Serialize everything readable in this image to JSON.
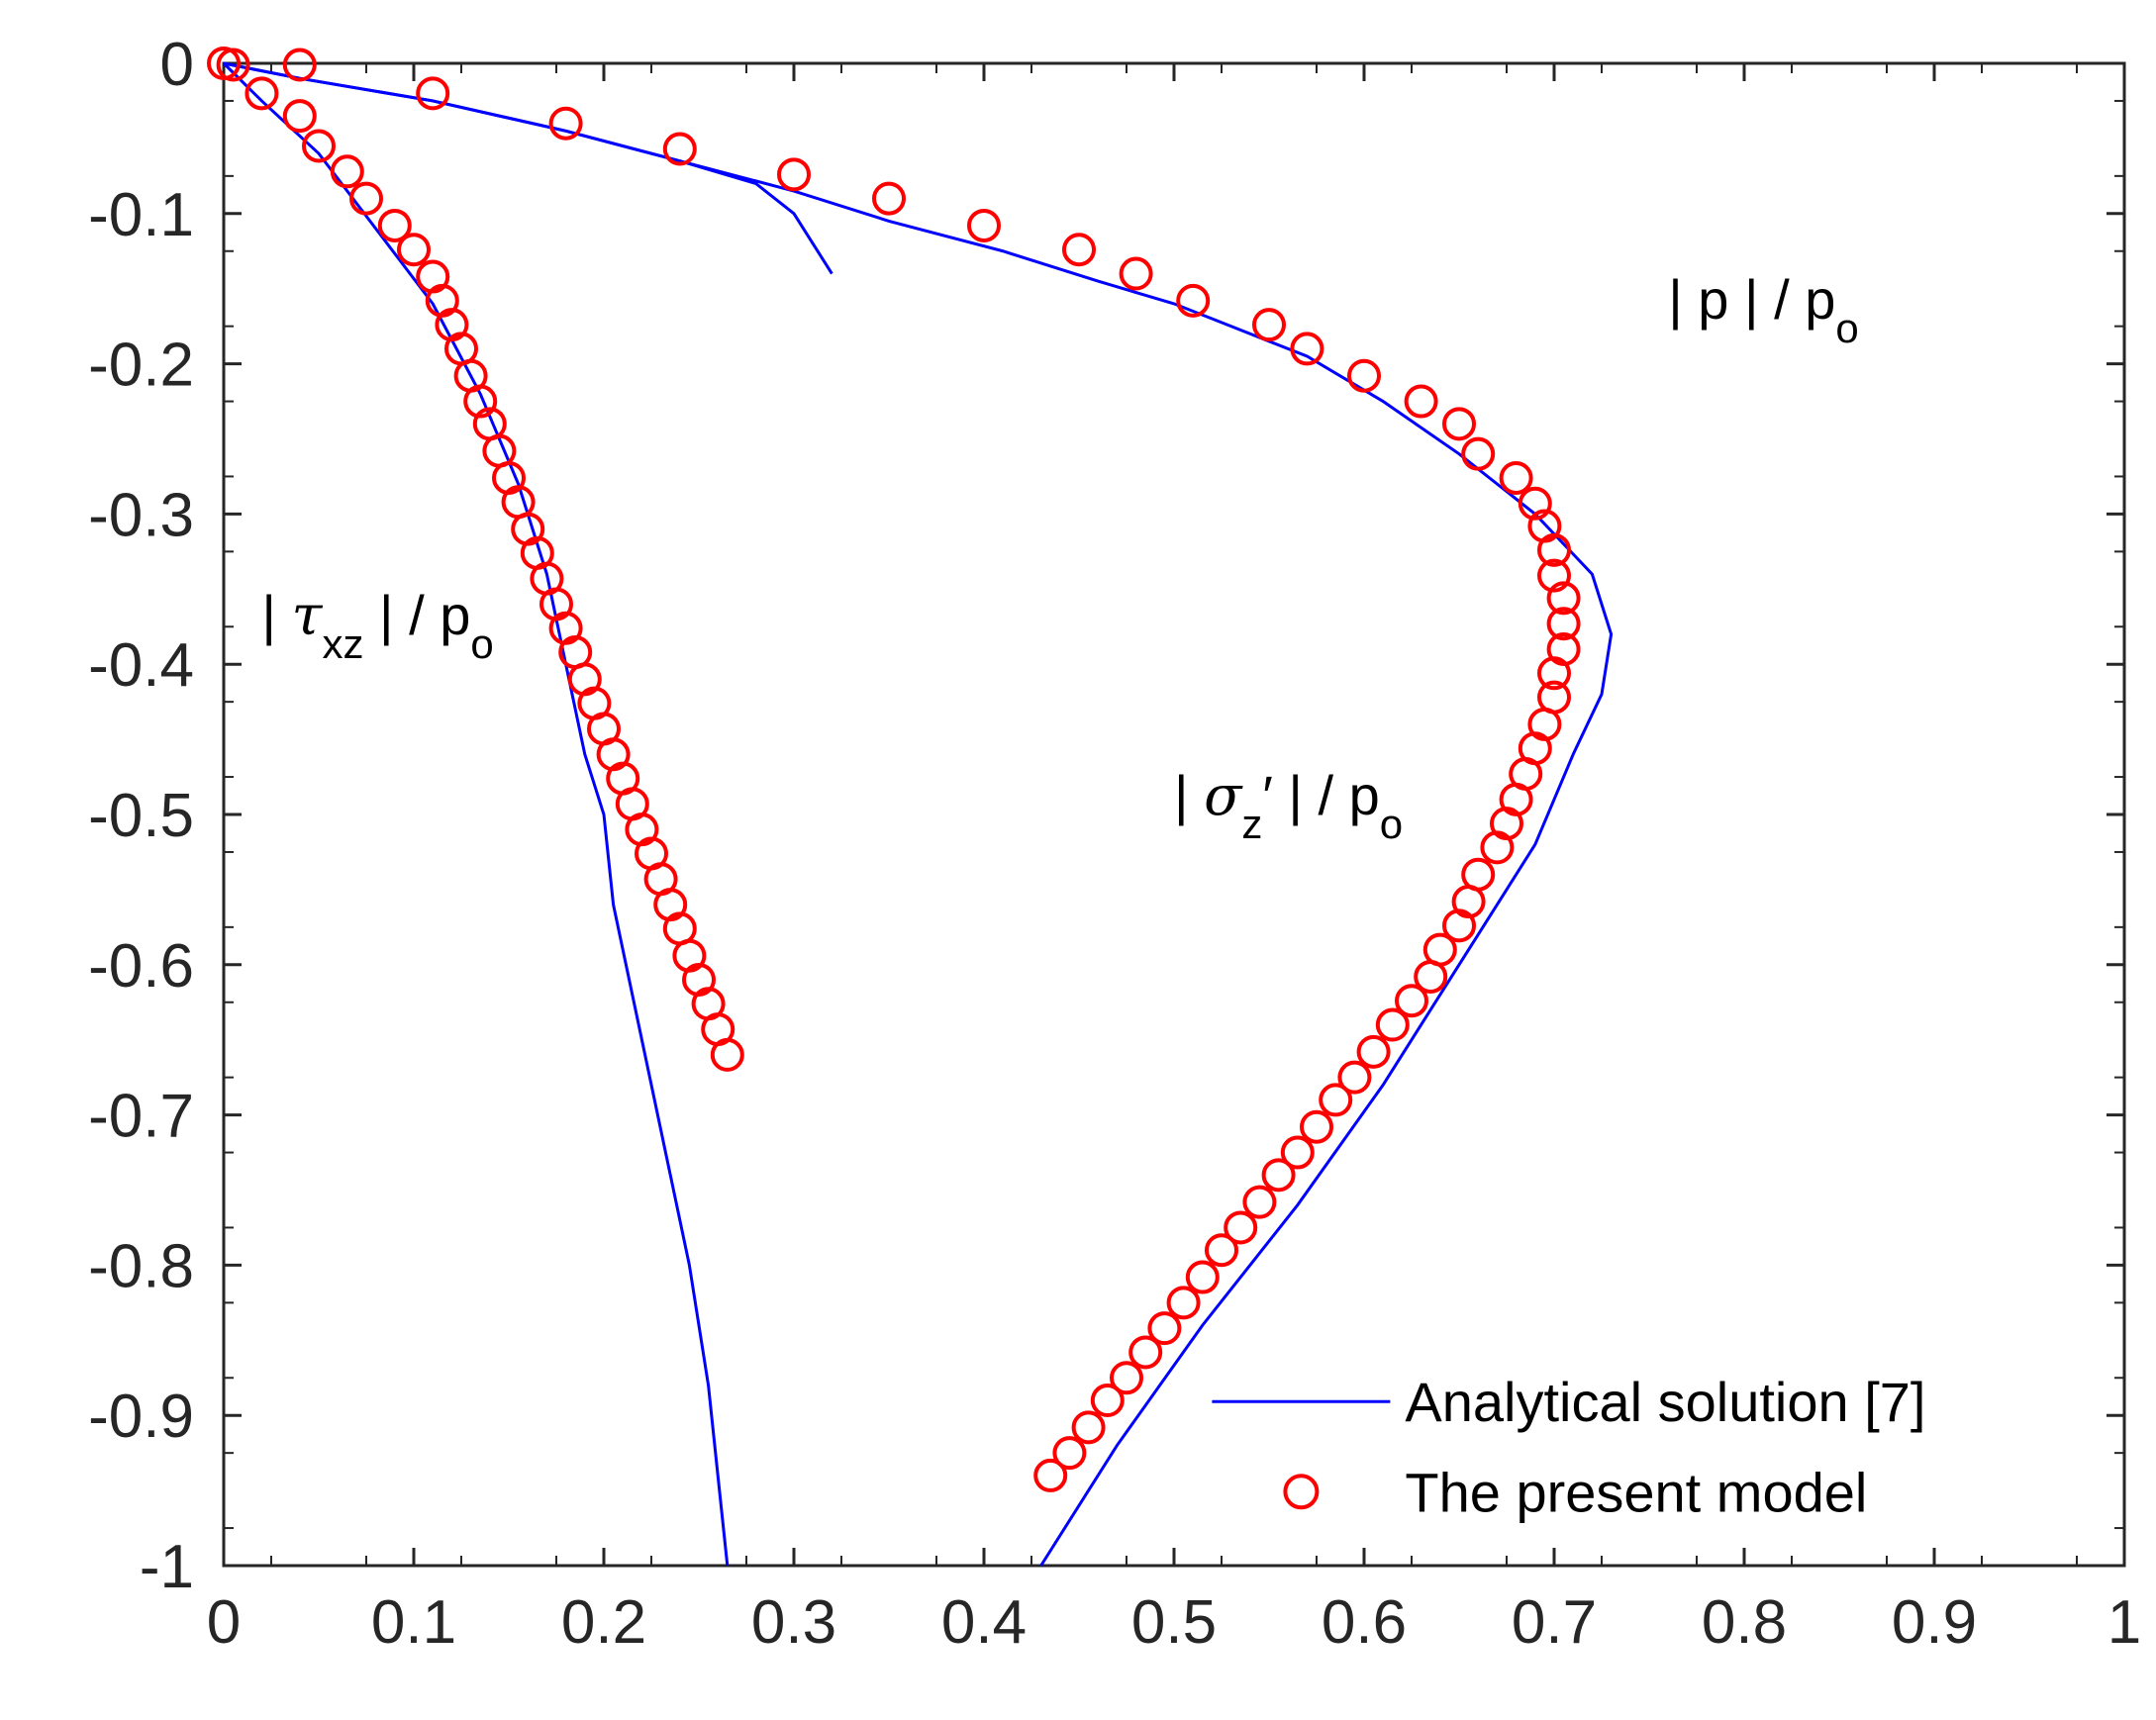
{
  "chart_data": {
    "type": "line",
    "xlim": [
      0,
      1
    ],
    "ylim": [
      -1,
      0
    ],
    "x_ticks": [
      "0",
      "0.1",
      "0.2",
      "0.3",
      "0.4",
      "0.5",
      "0.6",
      "0.7",
      "0.8",
      "0.9",
      "1"
    ],
    "y_ticks": [
      "0",
      "-0.1",
      "-0.2",
      "-0.3",
      "-0.4",
      "-0.5",
      "-0.6",
      "-0.7",
      "-0.8",
      "-0.9",
      "-1"
    ],
    "grid": false,
    "legend_position": "bottom-right",
    "colors": {
      "analytical": "#0000ff",
      "model": "#ff0000",
      "axes": "#262626"
    },
    "curve_labels": {
      "p": {
        "bar_open": "| p | / p",
        "sub": "o"
      },
      "tau": {
        "bar_open": "| ",
        "symbol": "τ",
        "sub1": "xz",
        "rest": " | / p",
        "sub2": "o"
      },
      "sigma": {
        "bar_open": "| ",
        "symbol": "σ",
        "sub1": "z",
        "prime": "′",
        "rest": " | / p",
        "sub2": "o"
      }
    },
    "legend": [
      {
        "label": "Analytical solution [7]",
        "marker": "line"
      },
      {
        "label": "The present model",
        "marker": "circle"
      }
    ],
    "series": [
      {
        "key": "p",
        "analytical": {
          "x": [
            0.0,
            0.04,
            0.11,
            0.18,
            0.24,
            0.3,
            0.35,
            0.41,
            0.46,
            0.5,
            0.53,
            0.57,
            0.61,
            0.65,
            0.69,
            0.72,
            0.73,
            0.725,
            0.71,
            0.69,
            0.65,
            0.61,
            0.565,
            0.515,
            0.47,
            0.43
          ],
          "y": [
            0.0,
            -0.01,
            -0.025,
            -0.045,
            -0.065,
            -0.085,
            -0.105,
            -0.125,
            -0.145,
            -0.16,
            -0.175,
            -0.195,
            -0.225,
            -0.26,
            -0.3,
            -0.34,
            -0.38,
            -0.42,
            -0.46,
            -0.52,
            -0.6,
            -0.68,
            -0.76,
            -0.84,
            -0.92,
            -1.0
          ]
        },
        "model": {
          "x": [
            0.005,
            0.04,
            0.11,
            0.18,
            0.24,
            0.3,
            0.35,
            0.4,
            0.45,
            0.48,
            0.51,
            0.55,
            0.57,
            0.6,
            0.63,
            0.65,
            0.66,
            0.68,
            0.69,
            0.695,
            0.7,
            0.7,
            0.705,
            0.705,
            0.705,
            0.7,
            0.7,
            0.695,
            0.69,
            0.685,
            0.68,
            0.675,
            0.67,
            0.66,
            0.655,
            0.65,
            0.64,
            0.635,
            0.625,
            0.615,
            0.605,
            0.595,
            0.585,
            0.575,
            0.565,
            0.555,
            0.545,
            0.535,
            0.525,
            0.515,
            0.505,
            0.495,
            0.485,
            0.475,
            0.465,
            0.455,
            0.445,
            0.435
          ],
          "y": [
            -0.001,
            -0.001,
            -0.02,
            -0.04,
            -0.057,
            -0.074,
            -0.09,
            -0.108,
            -0.124,
            -0.14,
            -0.158,
            -0.174,
            -0.19,
            -0.208,
            -0.225,
            -0.24,
            -0.26,
            -0.276,
            -0.293,
            -0.308,
            -0.324,
            -0.341,
            -0.356,
            -0.373,
            -0.39,
            -0.406,
            -0.422,
            -0.44,
            -0.456,
            -0.473,
            -0.49,
            -0.506,
            -0.522,
            -0.54,
            -0.558,
            -0.574,
            -0.59,
            -0.608,
            -0.624,
            -0.64,
            -0.658,
            -0.675,
            -0.69,
            -0.708,
            -0.725,
            -0.74,
            -0.758,
            -0.775,
            -0.79,
            -0.808,
            -0.825,
            -0.842,
            -0.858,
            -0.875,
            -0.89,
            -0.908,
            -0.925,
            -0.94
          ]
        }
      },
      {
        "key": "tau",
        "analytical": {
          "x": [
            0.0,
            0.02,
            0.05,
            0.08,
            0.11,
            0.135,
            0.155,
            0.17,
            0.18,
            0.19,
            0.2,
            0.205,
            0.215,
            0.225,
            0.235,
            0.245,
            0.255,
            0.265
          ],
          "y": [
            0.0,
            -0.025,
            -0.06,
            -0.11,
            -0.16,
            -0.22,
            -0.28,
            -0.34,
            -0.4,
            -0.46,
            -0.5,
            -0.56,
            -0.62,
            -0.68,
            -0.74,
            -0.8,
            -0.88,
            -1.0
          ]
        },
        "model": {
          "x": [
            0.02,
            0.04,
            0.05,
            0.065,
            0.075,
            0.09,
            0.1,
            0.11,
            0.115,
            0.12,
            0.125,
            0.13,
            0.135,
            0.14,
            0.145,
            0.15,
            0.155,
            0.16,
            0.165,
            0.17,
            0.175,
            0.18,
            0.185,
            0.19,
            0.195,
            0.2,
            0.205,
            0.21,
            0.215,
            0.22,
            0.225,
            0.23,
            0.235,
            0.24,
            0.245,
            0.25,
            0.255,
            0.26,
            0.265
          ],
          "y": [
            -0.02,
            -0.035,
            -0.055,
            -0.072,
            -0.09,
            -0.108,
            -0.124,
            -0.142,
            -0.158,
            -0.174,
            -0.19,
            -0.208,
            -0.225,
            -0.24,
            -0.258,
            -0.276,
            -0.292,
            -0.31,
            -0.326,
            -0.343,
            -0.36,
            -0.376,
            -0.392,
            -0.41,
            -0.426,
            -0.443,
            -0.46,
            -0.476,
            -0.493,
            -0.51,
            -0.526,
            -0.543,
            -0.56,
            -0.576,
            -0.594,
            -0.61,
            -0.626,
            -0.643,
            -0.66
          ]
        }
      },
      {
        "key": "sigma",
        "analytical": {
          "x": [
            0.0,
            0.04,
            0.11,
            0.18,
            0.24,
            0.28,
            0.3,
            0.31,
            0.32
          ],
          "y": [
            0.0,
            -0.01,
            -0.025,
            -0.045,
            -0.065,
            -0.08,
            -0.1,
            -0.12,
            -0.14
          ]
        },
        "model": {
          "x": [
            0.0
          ],
          "y": [
            0.0
          ]
        }
      }
    ],
    "annotations": [
      {
        "label_key": "p",
        "x": 0.76,
        "y": -0.17
      },
      {
        "label_key": "tau",
        "x": 0.02,
        "y": -0.38
      },
      {
        "label_key": "sigma",
        "x": 0.5,
        "y": -0.5
      }
    ]
  }
}
